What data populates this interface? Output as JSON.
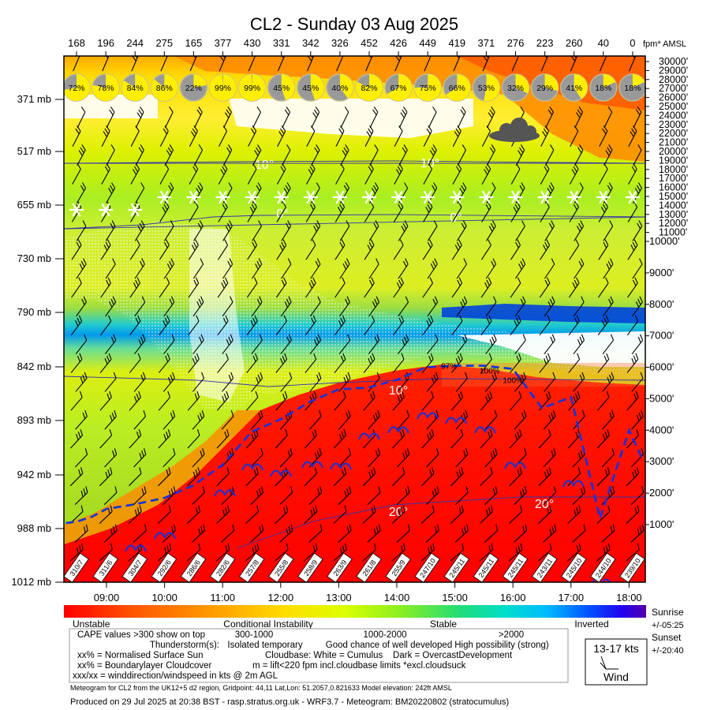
{
  "chart_data": {
    "type": "heatmap",
    "title": "CL2 - Sunday 03 Aug 2025",
    "cape_values": [
      "168",
      "196",
      "244",
      "275",
      "165",
      "377",
      "430",
      "331",
      "342",
      "326",
      "452",
      "426",
      "449",
      "419",
      "371",
      "276",
      "223",
      "260",
      "40",
      "0"
    ],
    "cape_unit_label": "fpm* AMSL",
    "sun_percent": [
      "72%",
      "78%",
      "84%",
      "86%",
      "22%",
      "99%",
      "99%",
      "45%",
      "45%",
      "40%",
      "82%",
      "67%",
      "75%",
      "66%",
      "53%",
      "32%",
      "29%",
      "41%",
      "18%",
      "18%"
    ],
    "sun_fraction": [
      0.72,
      0.78,
      0.84,
      0.86,
      0.22,
      0.99,
      0.99,
      0.45,
      0.45,
      0.4,
      0.82,
      0.67,
      0.75,
      0.66,
      0.53,
      0.32,
      0.29,
      0.41,
      0.18,
      0.18
    ],
    "pressure_levels": [
      "371 mb",
      "517 mb",
      "655 mb",
      "730 mb",
      "790 mb",
      "842 mb",
      "893 mb",
      "942 mb",
      "988 mb",
      "1012 mb"
    ],
    "altitude_labels": [
      "30000'",
      "29000'",
      "28000'",
      "27000'",
      "26000'",
      "25000'",
      "24000'",
      "23000'",
      "22000'",
      "21000'",
      "20000'",
      "19000'",
      "18000'",
      "17000'",
      "16000'",
      "15000'",
      "14000'",
      "13000'",
      "12000'",
      "11000'",
      "10000'",
      "9000'",
      "8000'",
      "7000'",
      "6000'",
      "5000'",
      "4000'",
      "3000'",
      "2000'",
      "1000'"
    ],
    "time_labels": [
      "09:00",
      "10:00",
      "11:00",
      "12:00",
      "13:00",
      "14:00",
      "15:00",
      "16:00",
      "17:00",
      "18:00"
    ],
    "wind_labels": [
      "310/7",
      "311/6",
      "304/7",
      "292/6",
      "286/6",
      "282/6",
      "257/8",
      "255/8",
      "258/9",
      "263/9",
      "261/8",
      "255/9",
      "247/10",
      "245/11",
      "245/11",
      "245/11",
      "243/11",
      "245/10",
      "244/10",
      "239/10"
    ],
    "cloudbase_curve": [
      {
        "x": 8.3,
        "ft": 1050
      },
      {
        "x": 8.5,
        "ft": 1100
      },
      {
        "x": 8.75,
        "ft": 1250
      },
      {
        "x": 9.0,
        "ft": 1500
      },
      {
        "x": 9.5,
        "ft": 1650
      },
      {
        "x": 10.0,
        "ft": 1850
      },
      {
        "x": 10.5,
        "ft": 2250
      },
      {
        "x": 11.0,
        "ft": 2900
      },
      {
        "x": 11.5,
        "ft": 3950
      },
      {
        "x": 12.0,
        "ft": 4350
      },
      {
        "x": 12.5,
        "ft": 4900
      },
      {
        "x": 13.0,
        "ft": 5300
      },
      {
        "x": 13.5,
        "ft": 5350
      },
      {
        "x": 14.0,
        "ft": 5600
      },
      {
        "x": 14.5,
        "ft": 6000
      },
      {
        "x": 15.0,
        "ft": 6050
      },
      {
        "x": 15.5,
        "ft": 6050
      },
      {
        "x": 16.0,
        "ft": 5950
      },
      {
        "x": 16.5,
        "ft": 4700
      },
      {
        "x": 17.0,
        "ft": 5050
      },
      {
        "x": 17.5,
        "ft": 1200
      },
      {
        "x": 18.0,
        "ft": 4000
      },
      {
        "x": 18.25,
        "ft": 3000
      }
    ],
    "cloud_percent_labels": [
      {
        "x": 14.9,
        "ft": 5950,
        "text": "97%"
      },
      {
        "x": 15.6,
        "ft": 5800,
        "text": "100%"
      },
      {
        "x": 16.0,
        "ft": 5500,
        "text": "100%"
      }
    ],
    "isotherms": [
      {
        "label": "10°",
        "ft": 16300
      },
      {
        "label": "10°",
        "ft": 16550
      },
      {
        "label": "0°",
        "ft": 11200
      },
      {
        "label": "0°",
        "ft": 11000
      },
      {
        "label": "10°",
        "ft": 4650
      },
      {
        "label": "20°",
        "ft": 1300
      },
      {
        "label": "20°",
        "ft": 1500
      }
    ],
    "legend": {
      "scale_labels": [
        "Unstable",
        "Conditional Instability",
        "Stable",
        "Inverted"
      ],
      "colorbar_colors": [
        "#ff0000",
        "#ff4400",
        "#ff8800",
        "#ffbb00",
        "#ffee00",
        "#ccff00",
        "#88ee00",
        "#44dd44",
        "#00dd88",
        "#00dddd",
        "#00aaff",
        "#0066ff",
        "#0022ff",
        "#4400cc"
      ],
      "cape_line": "CAPE values >300 show on top",
      "cape_ranges": [
        "300-1000",
        "1000-2000",
        ">2000"
      ],
      "thunder_line": "Thunderstorm(s):",
      "thunder_levels": [
        "Isolated temporary",
        "Good chance of well developed",
        "High possibility (strong)"
      ],
      "sun_line": "xx% = Normalised Surface Sun",
      "cloudbase_line": "Cloudbase: White = Cumulus    Dark = OvercastDevelopment",
      "blcover_line": "xx% = Boundarylayer Cloudcover",
      "lift_line": "m = lift<220 fpm incl.cloudbase limits *excl.cloudsuck",
      "wind_line": "xxx/xx = winddirection/windspeed in kts @ 2m AGL",
      "wind_key_speed": "13-17 kts",
      "wind_key_label": "Wind",
      "sunrise_label": "Sunrise",
      "sunrise_time": "+/-05:25",
      "sunset_label": "Sunset",
      "sunset_time": "+/-20:40"
    },
    "footnote": "Meteogram for CL2 from the UK12+5 d2 region, Gridpoint: 44,11 Lat,Lon: 51.2057,0.821633 Model elevation: 242ft AMSL",
    "produced": "Produced on 29 Jul 2025 at 20:38 BST - rasp.stratus.org.uk - WRF3.7 - Meteogram: BM20220802 (stratocumulus)"
  }
}
